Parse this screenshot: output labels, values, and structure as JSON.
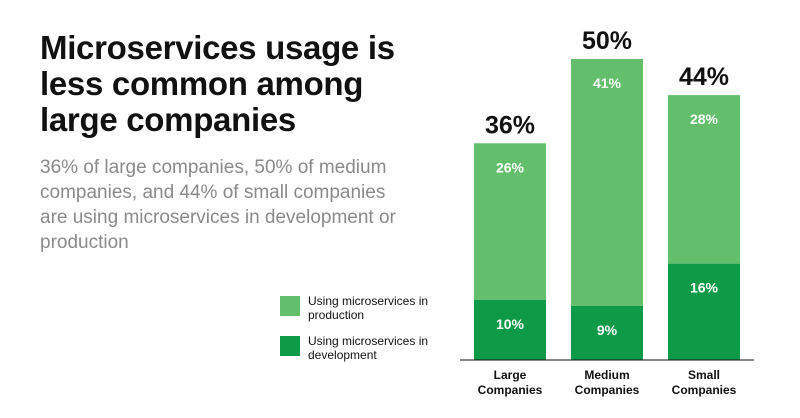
{
  "title": "Microservices usage is less common among large companies",
  "subtitle": "36% of large companies, 50% of medium companies, and 44% of small companies are using microservices in development or production",
  "colors": {
    "production": "#63bf6c",
    "development": "#0e9a47",
    "bar_label": "#ffffff",
    "total_label": "#111111",
    "axis": "#111111"
  },
  "legend": [
    {
      "label": "Using microservices in production",
      "color": "#63bf6c"
    },
    {
      "label": "Using microservices in development",
      "color": "#0e9a47"
    }
  ],
  "chart_data": {
    "type": "bar",
    "stacked": true,
    "categories": [
      "Large Companies",
      "Medium Companies",
      "Small Companies"
    ],
    "series": [
      {
        "name": "Using microservices in development",
        "values": [
          10,
          9,
          16
        ],
        "labels": [
          "10%",
          "9%",
          "16%"
        ]
      },
      {
        "name": "Using microservices in production",
        "values": [
          26,
          41,
          28
        ],
        "labels": [
          "26%",
          "41%",
          "28%"
        ]
      }
    ],
    "totals": [
      36,
      50,
      44
    ],
    "total_labels": [
      "36%",
      "50%",
      "44%"
    ],
    "ylim": [
      0,
      50
    ],
    "grid": false,
    "legend_position": "left"
  }
}
